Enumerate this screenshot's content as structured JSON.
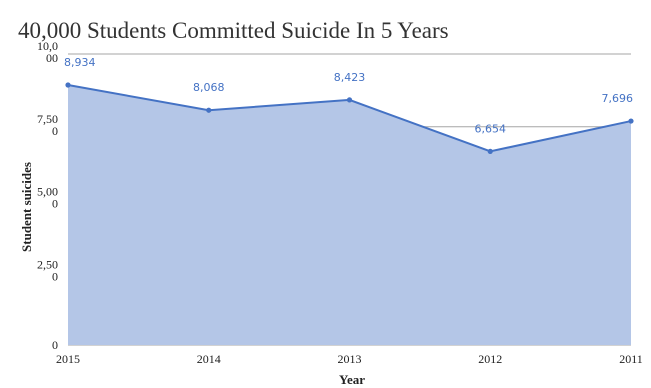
{
  "chart_data": {
    "type": "area",
    "title": "40,000 Students Committed Suicide In 5 Years",
    "xlabel": "Year",
    "ylabel": "Student suicides",
    "categories": [
      "2015",
      "2014",
      "2013",
      "2012",
      "2011"
    ],
    "values": [
      8934,
      8068,
      8423,
      6654,
      7696
    ],
    "data_labels": [
      "8,934",
      "8,068",
      "8,423",
      "6,654",
      "7,696"
    ],
    "y_ticks": [
      {
        "value": 0,
        "lines": [
          "0"
        ]
      },
      {
        "value": 2500,
        "lines": [
          "2,50",
          "0"
        ]
      },
      {
        "value": 5000,
        "lines": [
          "5,00",
          "0"
        ]
      },
      {
        "value": 7500,
        "lines": [
          "7,50",
          "0"
        ]
      },
      {
        "value": 10000,
        "lines": [
          "10,0",
          "00"
        ]
      }
    ],
    "ylim": [
      0,
      10000
    ],
    "grid": true,
    "legend": "none",
    "colors": {
      "line": "#4472c4",
      "fill": "#b4c6e7",
      "grid": "#a6a6a6",
      "label": "#4472c4"
    }
  }
}
